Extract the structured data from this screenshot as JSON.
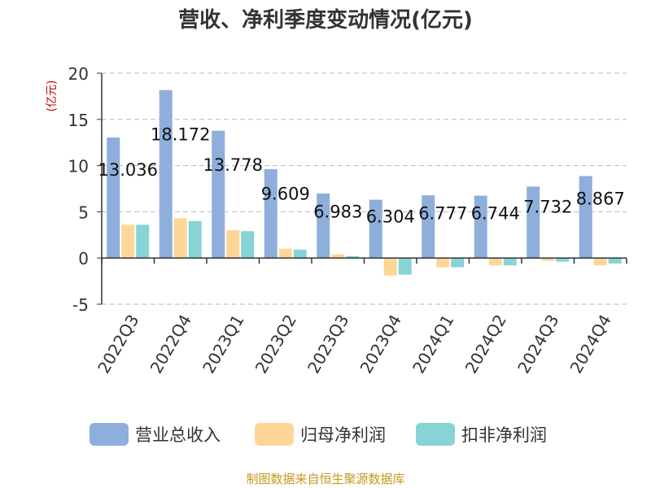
{
  "colors": {
    "revenue": "#8eaedb",
    "net_profit": "#fdd698",
    "deducted_net_profit": "#86d4d6",
    "unit_label": "#cc0000",
    "source": "#c8961e",
    "grid": "#bbbbbb",
    "axis": "#333333"
  },
  "chart_data": {
    "type": "bar",
    "title": "营收、净利季度变动情况(亿元)",
    "ylabel": "(亿元)",
    "categories": [
      "2022Q3",
      "2022Q4",
      "2023Q1",
      "2023Q2",
      "2023Q3",
      "2023Q4",
      "2024Q1",
      "2024Q2",
      "2024Q3",
      "2024Q4"
    ],
    "series": [
      {
        "name": "营业总收入",
        "values": [
          13.036,
          18.172,
          13.778,
          9.609,
          6.983,
          6.304,
          6.777,
          6.744,
          7.732,
          8.867
        ]
      },
      {
        "name": "归母净利润",
        "values": [
          3.6,
          4.3,
          3.0,
          1.0,
          0.4,
          -1.9,
          -1.0,
          -0.8,
          -0.3,
          -0.8
        ]
      },
      {
        "name": "扣非净利润",
        "values": [
          3.6,
          4.0,
          2.9,
          0.9,
          0.2,
          -1.8,
          -1.0,
          -0.8,
          -0.4,
          -0.6
        ]
      }
    ],
    "data_labels": [
      "13.036",
      "18.172",
      "13.778",
      "9.609",
      "6.983",
      "6.304",
      "6.777",
      "6.744",
      "7.732",
      "8.867"
    ],
    "yticks": [
      "20",
      "15",
      "10",
      "5",
      "0",
      "-5"
    ],
    "ytick_values": [
      20,
      15,
      10,
      5,
      0,
      -5
    ],
    "ylim": [
      -5,
      20
    ],
    "grid": true,
    "legend": "bottom"
  },
  "footer": {
    "source": "制图数据来自恒生聚源数据库"
  }
}
